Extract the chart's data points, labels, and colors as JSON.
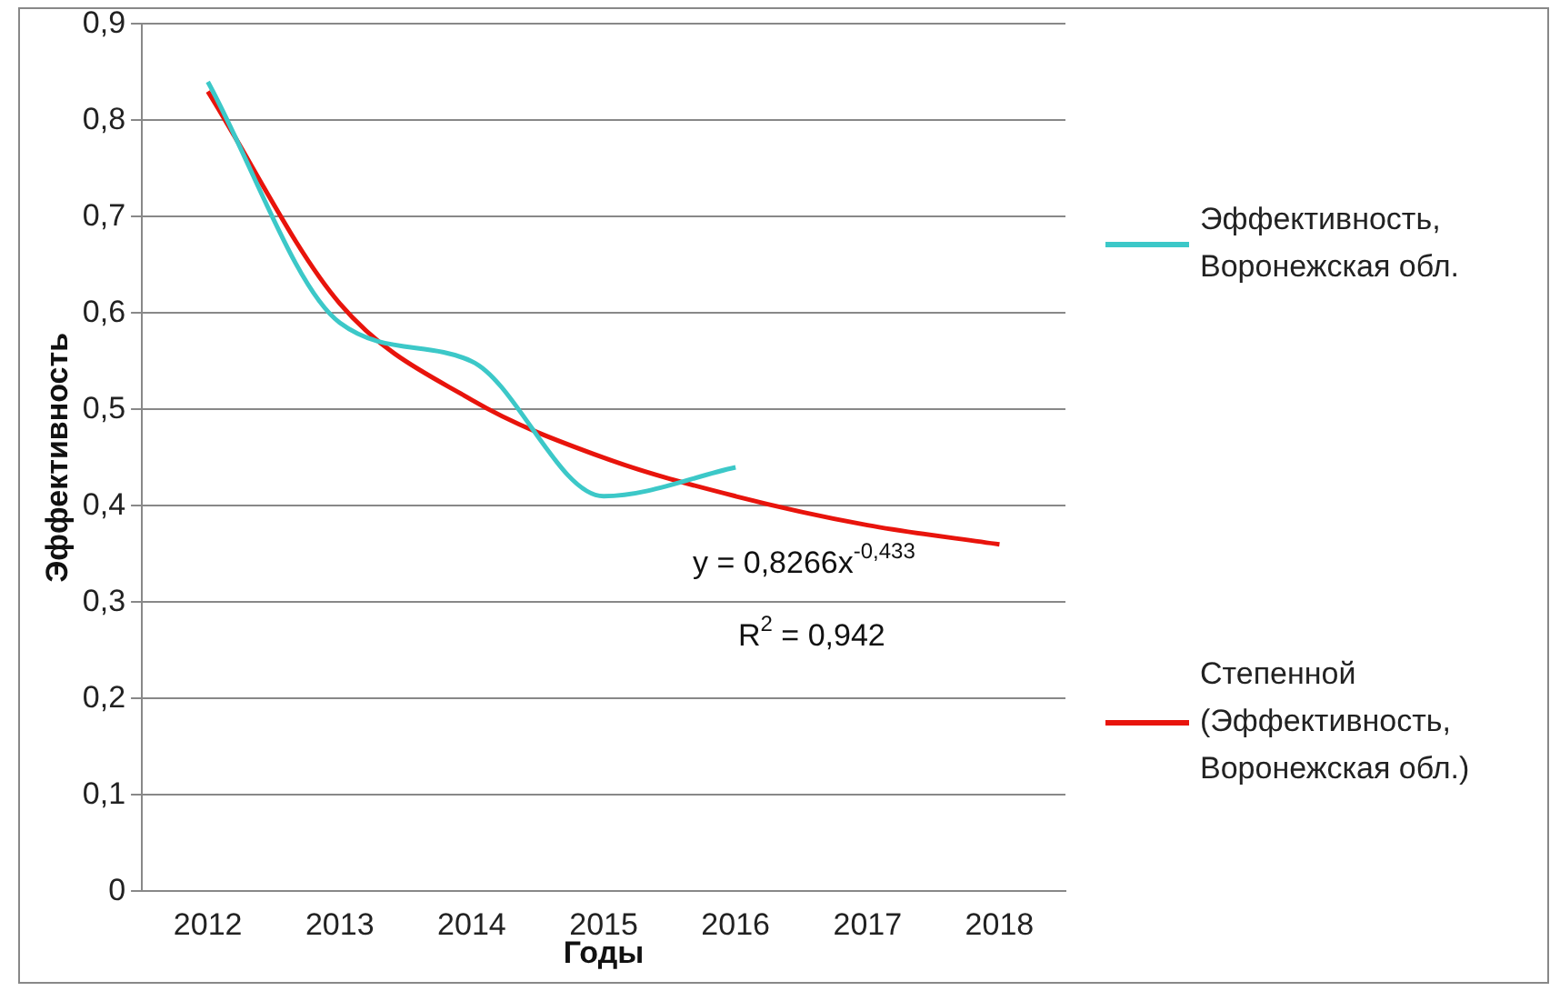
{
  "chart_data": {
    "type": "line",
    "xlabel": "Годы",
    "ylabel": "Эффективность",
    "categories": [
      "2012",
      "2013",
      "2014",
      "2015",
      "2016",
      "2017",
      "2018"
    ],
    "series": [
      {
        "name": "Эффективность, Воронежская обл.",
        "color": "#3cc8c8",
        "values": [
          0.84,
          0.59,
          0.55,
          0.41,
          0.44,
          null,
          null
        ]
      },
      {
        "name": "Степенной (Эффективность, Воронежская обл.)",
        "color": "#e8140c",
        "values": [
          0.83,
          0.61,
          0.51,
          0.45,
          0.41,
          0.38,
          0.36
        ]
      }
    ],
    "ylim": [
      0,
      0.9
    ],
    "yticks": [
      {
        "value": 0,
        "label": "0"
      },
      {
        "value": 0.1,
        "label": "0,1"
      },
      {
        "value": 0.2,
        "label": "0,2"
      },
      {
        "value": 0.3,
        "label": "0,3"
      },
      {
        "value": 0.4,
        "label": "0,4"
      },
      {
        "value": 0.5,
        "label": "0,5"
      },
      {
        "value": 0.6,
        "label": "0,6"
      },
      {
        "value": 0.7,
        "label": "0,7"
      },
      {
        "value": 0.8,
        "label": "0,8"
      },
      {
        "value": 0.9,
        "label": "0,9"
      }
    ],
    "grid": "y",
    "legend": "right",
    "marker": "none",
    "line_style": "solid",
    "annotations": [
      "y = 0,8266x$^{-0,433}$",
      "R$^{2}$ = 0,942"
    ]
  }
}
